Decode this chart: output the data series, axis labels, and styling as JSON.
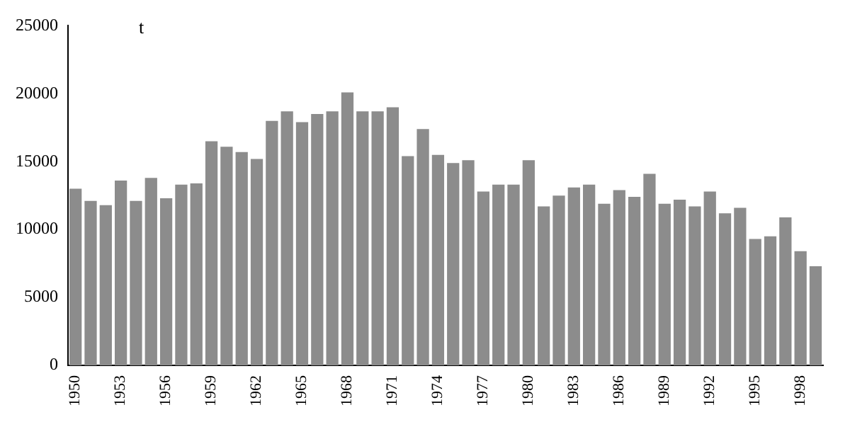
{
  "chart_data": {
    "type": "bar",
    "ylabel": "t",
    "categories": [
      "1950",
      null,
      null,
      "1953",
      null,
      null,
      "1956",
      null,
      null,
      "1959",
      null,
      null,
      "1962",
      null,
      null,
      "1965",
      null,
      null,
      "1968",
      null,
      null,
      "1971",
      null,
      null,
      "1974",
      null,
      null,
      "1977",
      null,
      null,
      "1980",
      null,
      null,
      "1983",
      null,
      null,
      "1986",
      null,
      null,
      "1989",
      null,
      null,
      "1992",
      null,
      null,
      "1995",
      null,
      null,
      "1998",
      null
    ],
    "values": [
      13000,
      12100,
      11800,
      13600,
      12100,
      13800,
      12300,
      13300,
      13400,
      16500,
      16100,
      15700,
      15200,
      18000,
      18700,
      17900,
      18500,
      18700,
      20100,
      18700,
      18700,
      19000,
      15400,
      17400,
      15500,
      14900,
      15100,
      12800,
      13300,
      13300,
      15100,
      11700,
      12500,
      13100,
      13300,
      11900,
      12900,
      12400,
      14100,
      11900,
      12200,
      11700,
      12800,
      11200,
      11600,
      9300,
      9500,
      10900,
      8400,
      7300
    ],
    "color": "#8c8c8c",
    "ylim": [
      0,
      25000
    ],
    "yticks": [
      0,
      5000,
      10000,
      15000,
      20000,
      25000
    ],
    "grid": false,
    "legend": false
  }
}
